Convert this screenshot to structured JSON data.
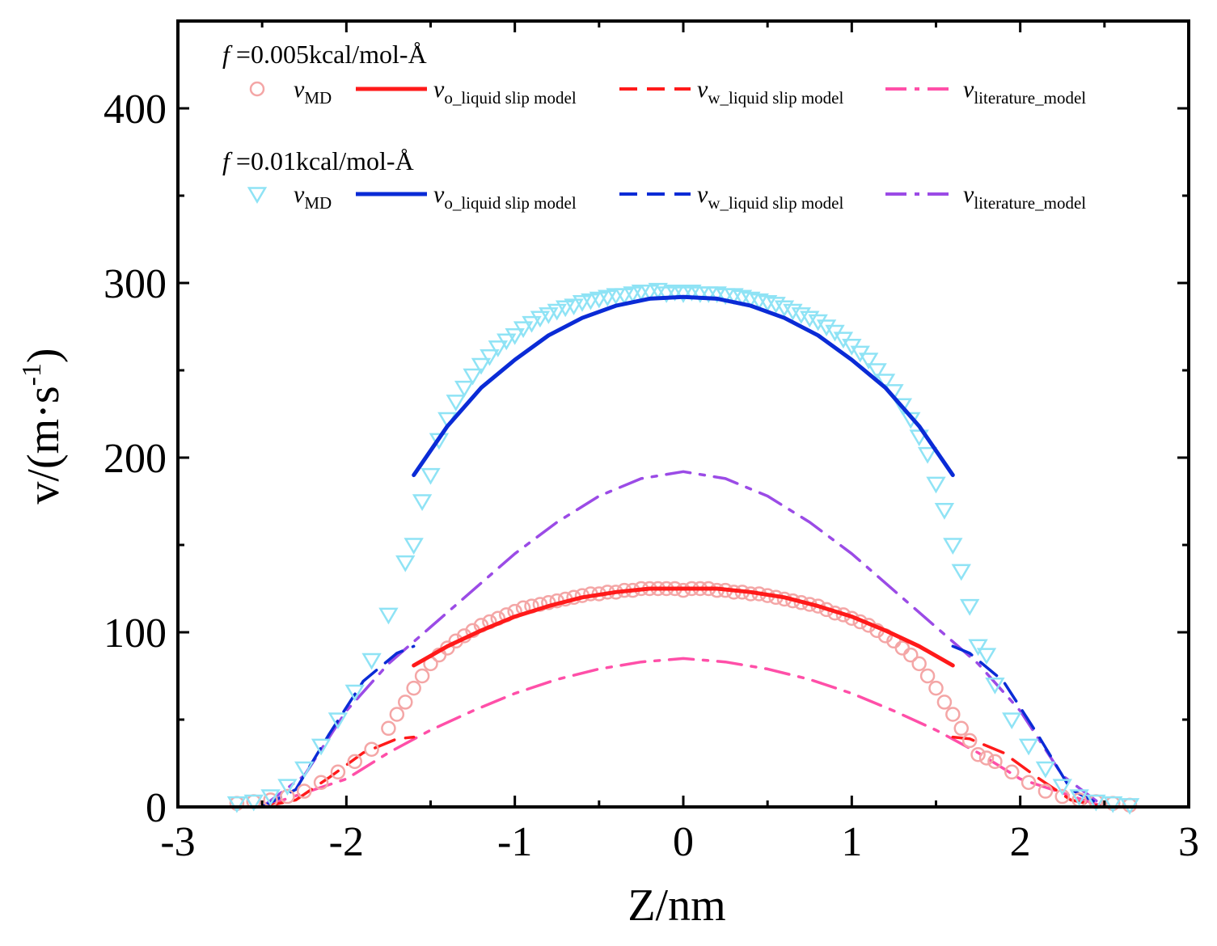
{
  "chart_data": {
    "type": "line",
    "title": "",
    "xlabel": "Z/nm",
    "ylabel": {
      "main": "v/(m·s",
      "sup": "-1",
      "close": ")"
    },
    "xlim": [
      -3,
      3
    ],
    "ylim": [
      0,
      450
    ],
    "x_ticks": [
      -3,
      -2,
      -1,
      0,
      1,
      2,
      3
    ],
    "x_tick_labels": [
      "-3",
      "-2",
      "-1",
      "0",
      "1",
      "2",
      "3"
    ],
    "y_ticks": [
      0,
      100,
      200,
      300,
      400
    ],
    "y_tick_labels": [
      "0",
      "100",
      "200",
      "300",
      "400"
    ],
    "colors": {
      "md_005": "#f4a6a6",
      "model_005": "#ff1a1a",
      "lit_005": "#ff4fa8",
      "md_01": "#8fe3f5",
      "model_01": "#0a2bd6",
      "lit_01": "#9b4be6"
    },
    "legend_groups": [
      {
        "header_italic": "f",
        "header_rest": " =0.005kcal/mol-Å",
        "entries": [
          {
            "symbol": "v",
            "sub": "MD",
            "style": "circle",
            "color": "md_005"
          },
          {
            "symbol": "v",
            "sub": "o_liquid slip model",
            "style": "solid",
            "color": "model_005"
          },
          {
            "symbol": "v",
            "sub": "w_liquid slip model",
            "style": "dash",
            "color": "model_005"
          },
          {
            "symbol": "v",
            "sub": "literature_model",
            "style": "dashdot",
            "color": "lit_005"
          }
        ]
      },
      {
        "header_italic": "f",
        "header_rest": " =0.01kcal/mol-Å",
        "entries": [
          {
            "symbol": "v",
            "sub": "MD",
            "style": "triangle",
            "color": "md_01"
          },
          {
            "symbol": "v",
            "sub": "o_liquid slip model",
            "style": "solid",
            "color": "model_01"
          },
          {
            "symbol": "v",
            "sub": "w_liquid slip model",
            "style": "dash",
            "color": "model_01"
          },
          {
            "symbol": "v",
            "sub": "literature_model",
            "style": "dashdot",
            "color": "lit_01"
          }
        ]
      }
    ],
    "series": [
      {
        "name": "v_MD (f=0.005)",
        "kind": "scatter-circle",
        "color": "md_005",
        "x": [
          -2.65,
          -2.55,
          -2.45,
          -2.35,
          -2.25,
          -2.15,
          -2.05,
          -1.95,
          -1.85,
          -1.75,
          -1.7,
          -1.65,
          -1.6,
          -1.55,
          -1.5,
          -1.45,
          -1.4,
          -1.35,
          -1.3,
          -1.25,
          -1.2,
          -1.15,
          -1.1,
          -1.05,
          -1.0,
          -0.95,
          -0.9,
          -0.85,
          -0.8,
          -0.75,
          -0.7,
          -0.65,
          -0.6,
          -0.55,
          -0.5,
          -0.45,
          -0.4,
          -0.35,
          -0.3,
          -0.25,
          -0.2,
          -0.15,
          -0.1,
          -0.05,
          0.0,
          0.05,
          0.1,
          0.15,
          0.2,
          0.25,
          0.3,
          0.35,
          0.4,
          0.45,
          0.5,
          0.55,
          0.6,
          0.65,
          0.7,
          0.75,
          0.8,
          0.85,
          0.9,
          0.95,
          1.0,
          1.05,
          1.1,
          1.15,
          1.2,
          1.25,
          1.3,
          1.35,
          1.4,
          1.45,
          1.5,
          1.55,
          1.6,
          1.65,
          1.7,
          1.75,
          1.8,
          1.85,
          1.95,
          2.05,
          2.15,
          2.25,
          2.35,
          2.45,
          2.55,
          2.65
        ],
        "y": [
          2,
          3,
          4,
          6,
          9,
          14,
          20,
          26,
          33,
          45,
          53,
          60,
          68,
          75,
          82,
          87,
          91,
          95,
          98,
          101,
          104,
          106,
          108,
          110,
          112,
          114,
          115,
          116,
          117,
          118,
          119,
          120,
          121,
          122,
          122,
          123,
          123,
          124,
          124,
          125,
          125,
          125,
          125,
          125,
          124,
          125,
          125,
          125,
          124,
          124,
          123,
          123,
          122,
          122,
          121,
          120,
          119,
          118,
          117,
          116,
          115,
          113,
          111,
          110,
          108,
          106,
          104,
          101,
          98,
          95,
          91,
          87,
          82,
          75,
          68,
          60,
          53,
          45,
          38,
          30,
          28,
          26,
          20,
          14,
          9,
          6,
          4,
          3,
          2,
          1
        ]
      },
      {
        "name": "v_o_liquid slip model (f=0.005)",
        "kind": "line-solid",
        "color": "model_005",
        "x": [
          -1.6,
          -1.4,
          -1.2,
          -1.0,
          -0.8,
          -0.6,
          -0.4,
          -0.2,
          0.0,
          0.2,
          0.4,
          0.6,
          0.8,
          1.0,
          1.2,
          1.4,
          1.6
        ],
        "y": [
          81,
          92,
          101,
          109,
          115,
          120,
          123,
          125,
          125,
          125,
          123,
          120,
          115,
          109,
          101,
          92,
          81
        ]
      },
      {
        "name": "v_w_liquid slip model (f=0.005)",
        "kind": "line-dash",
        "color": "model_005",
        "x": [
          -2.5,
          -2.3,
          -2.1,
          -1.9,
          -1.7,
          -1.6,
          null,
          1.6,
          1.7,
          1.9,
          2.1,
          2.3,
          2.5
        ],
        "y": [
          0,
          4,
          17,
          31,
          39,
          40,
          null,
          40,
          39,
          31,
          17,
          4,
          0
        ]
      },
      {
        "name": "v_literature_model (f=0.005)",
        "kind": "line-dashdot",
        "color": "lit_005",
        "x": [
          -2.5,
          -2.25,
          -2.0,
          -1.75,
          -1.5,
          -1.25,
          -1.0,
          -0.75,
          -0.5,
          -0.25,
          0.0,
          0.25,
          0.5,
          0.75,
          1.0,
          1.25,
          1.5,
          1.75,
          2.0,
          2.25,
          2.5
        ],
        "y": [
          0,
          8,
          16,
          31,
          44,
          55,
          65,
          73,
          79,
          83,
          85,
          83,
          79,
          73,
          65,
          55,
          44,
          31,
          16,
          8,
          0
        ]
      },
      {
        "name": "v_MD (f=0.01)",
        "kind": "scatter-triangle",
        "color": "md_01",
        "x": [
          -2.65,
          -2.55,
          -2.45,
          -2.35,
          -2.25,
          -2.15,
          -2.05,
          -1.95,
          -1.85,
          -1.75,
          -1.65,
          -1.6,
          -1.55,
          -1.5,
          -1.45,
          -1.4,
          -1.35,
          -1.3,
          -1.25,
          -1.2,
          -1.15,
          -1.1,
          -1.05,
          -1.0,
          -0.95,
          -0.9,
          -0.85,
          -0.8,
          -0.75,
          -0.7,
          -0.65,
          -0.6,
          -0.55,
          -0.5,
          -0.45,
          -0.4,
          -0.35,
          -0.3,
          -0.25,
          -0.2,
          -0.15,
          -0.1,
          -0.05,
          0.0,
          0.05,
          0.1,
          0.15,
          0.2,
          0.25,
          0.3,
          0.35,
          0.4,
          0.45,
          0.5,
          0.55,
          0.6,
          0.65,
          0.7,
          0.75,
          0.8,
          0.85,
          0.9,
          0.95,
          1.0,
          1.05,
          1.1,
          1.15,
          1.2,
          1.25,
          1.3,
          1.35,
          1.4,
          1.45,
          1.5,
          1.55,
          1.6,
          1.65,
          1.7,
          1.75,
          1.8,
          1.85,
          1.95,
          2.05,
          2.15,
          2.25,
          2.35,
          2.45,
          2.55,
          2.65
        ],
        "y": [
          2,
          3,
          6,
          12,
          22,
          35,
          50,
          66,
          84,
          110,
          140,
          150,
          175,
          190,
          210,
          222,
          232,
          240,
          247,
          253,
          258,
          263,
          267,
          270,
          274,
          277,
          280,
          282,
          284,
          286,
          287,
          289,
          290,
          291,
          292,
          293,
          293,
          294,
          295,
          295,
          296,
          294,
          295,
          294,
          295,
          294,
          294,
          294,
          293,
          293,
          292,
          291,
          290,
          289,
          288,
          286,
          284,
          282,
          280,
          278,
          275,
          272,
          268,
          264,
          260,
          256,
          250,
          244,
          238,
          230,
          222,
          212,
          202,
          185,
          170,
          150,
          135,
          115,
          92,
          87,
          70,
          50,
          35,
          22,
          12,
          6,
          3,
          2,
          1
        ]
      },
      {
        "name": "v_o_liquid slip model (f=0.01)",
        "kind": "line-solid",
        "color": "model_01",
        "x": [
          -1.6,
          -1.4,
          -1.2,
          -1.0,
          -0.8,
          -0.6,
          -0.4,
          -0.2,
          0.0,
          0.2,
          0.4,
          0.6,
          0.8,
          1.0,
          1.2,
          1.4,
          1.6
        ],
        "y": [
          190,
          218,
          240,
          256,
          270,
          280,
          287,
          291,
          292,
          291,
          287,
          280,
          270,
          256,
          240,
          218,
          190
        ]
      },
      {
        "name": "v_w_liquid slip model (f=0.01)",
        "kind": "line-dash",
        "color": "model_01",
        "x": [
          -2.5,
          -2.3,
          -2.1,
          -1.9,
          -1.7,
          -1.6,
          null,
          1.6,
          1.7,
          1.9,
          2.1,
          2.3,
          2.5
        ],
        "y": [
          0,
          10,
          42,
          72,
          88,
          92,
          null,
          92,
          88,
          72,
          42,
          10,
          0
        ]
      },
      {
        "name": "v_literature_model (f=0.01)",
        "kind": "line-dashdot",
        "color": "lit_01",
        "x": [
          -2.5,
          -2.25,
          -2.0,
          -1.75,
          -1.5,
          -1.25,
          -1.0,
          -0.75,
          -0.5,
          -0.25,
          0.0,
          0.25,
          0.5,
          0.75,
          1.0,
          1.25,
          1.5,
          1.75,
          2.0,
          2.25,
          2.5
        ],
        "y": [
          0,
          18,
          55,
          82,
          103,
          124,
          145,
          163,
          178,
          188,
          192,
          188,
          178,
          163,
          145,
          124,
          103,
          82,
          55,
          18,
          0
        ]
      }
    ]
  }
}
